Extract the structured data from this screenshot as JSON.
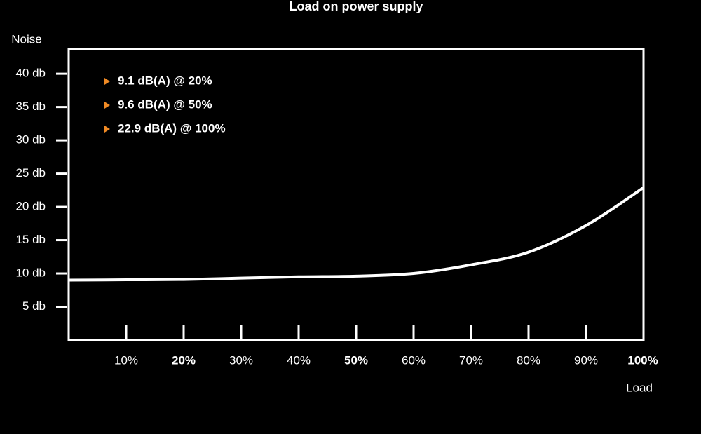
{
  "chart_data": {
    "type": "line",
    "title": "Load on power supply",
    "y_label": "Noise",
    "x_label": "Load",
    "x": [
      0,
      10,
      20,
      30,
      40,
      50,
      60,
      70,
      80,
      90,
      100
    ],
    "series": [
      {
        "name": "Noise",
        "color": "#ffffff",
        "values": [
          9.0,
          9.05,
          9.1,
          9.3,
          9.5,
          9.6,
          10.0,
          11.3,
          13.2,
          17.2,
          22.9
        ]
      }
    ],
    "xlim": [
      0,
      100
    ],
    "ylim": [
      0,
      43.7
    ],
    "xticks": [
      {
        "value": 10,
        "label": "10%"
      },
      {
        "value": 20,
        "label": "20%",
        "bold": true
      },
      {
        "value": 30,
        "label": "30%"
      },
      {
        "value": 40,
        "label": "40%"
      },
      {
        "value": 50,
        "label": "50%",
        "bold": true
      },
      {
        "value": 60,
        "label": "60%"
      },
      {
        "value": 70,
        "label": "70%"
      },
      {
        "value": 80,
        "label": "80%"
      },
      {
        "value": 90,
        "label": "90%"
      },
      {
        "value": 100,
        "label": "100%",
        "bold": true
      }
    ],
    "yticks": [
      {
        "value": 5,
        "label": "5 db"
      },
      {
        "value": 10,
        "label": "10 db"
      },
      {
        "value": 15,
        "label": "15 db"
      },
      {
        "value": 20,
        "label": "20 db"
      },
      {
        "value": 25,
        "label": "25 db"
      },
      {
        "value": 30,
        "label": "30 db"
      },
      {
        "value": 35,
        "label": "35 db"
      },
      {
        "value": 40,
        "label": "40 db"
      }
    ],
    "annotations": [
      "9.1 dB(A) @ 20%",
      "9.6 dB(A) @ 50%",
      "22.9 dB(A) @ 100%"
    ],
    "annotation_marker_color": "#f08a24"
  }
}
